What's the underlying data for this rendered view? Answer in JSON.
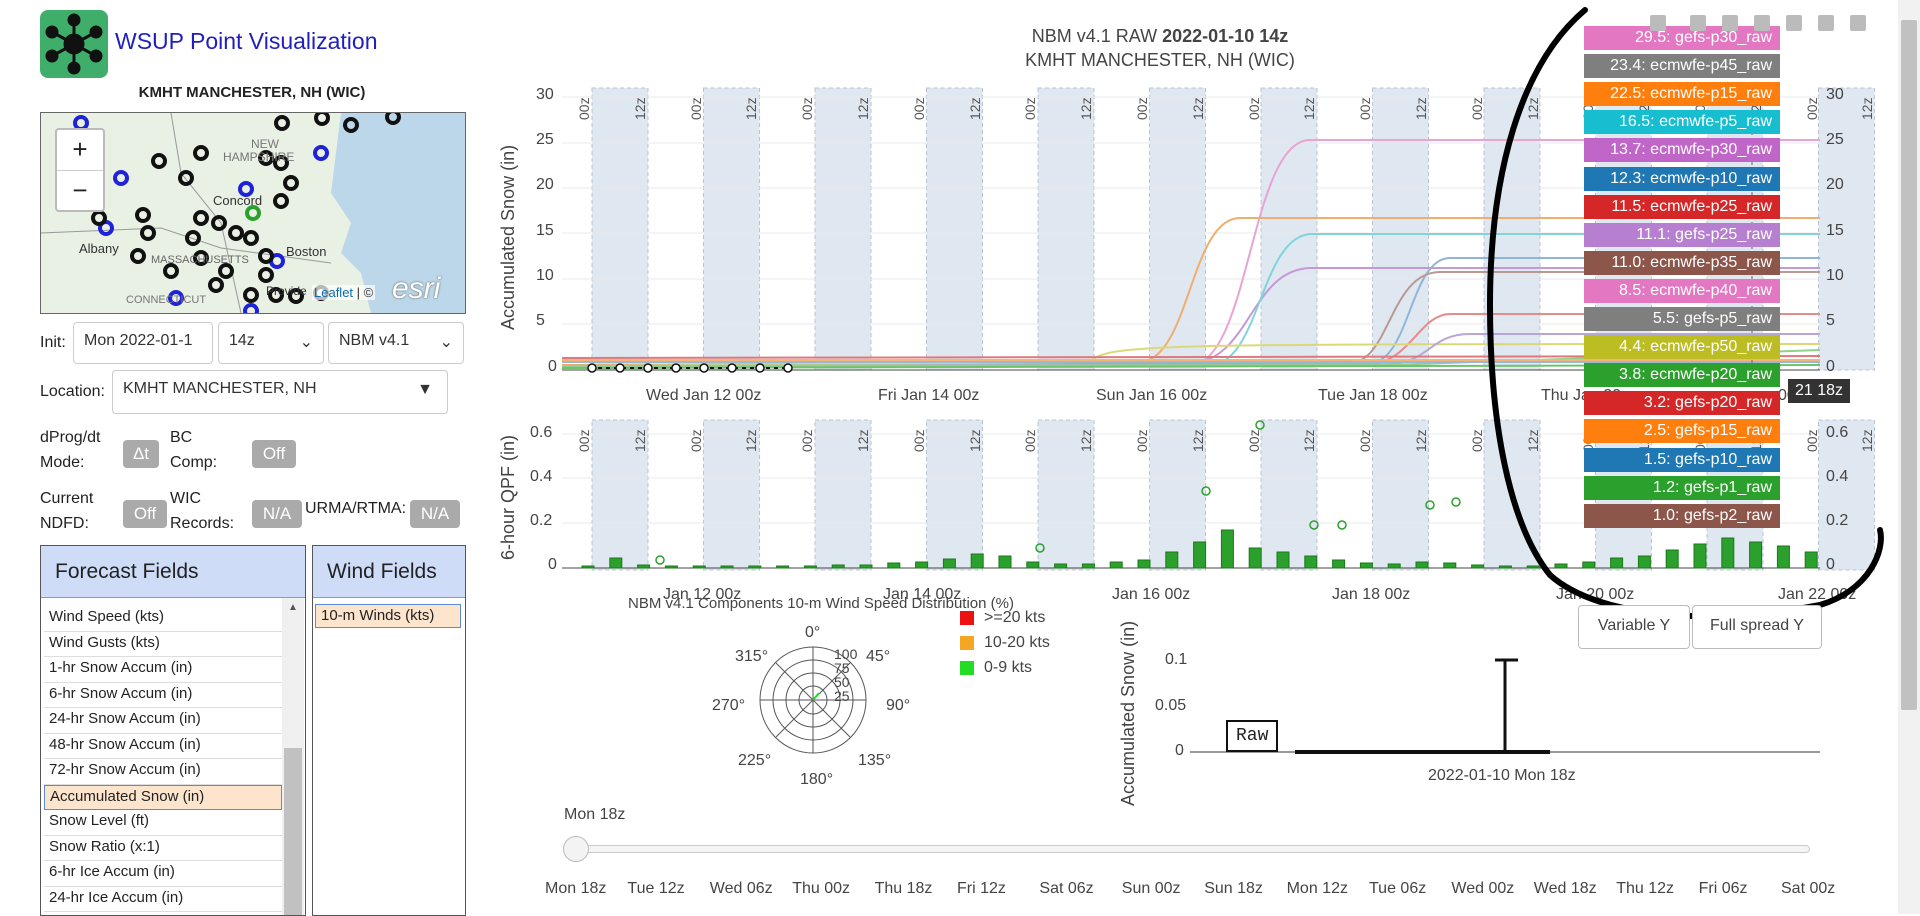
{
  "app": {
    "title": "WSUP Point Visualization"
  },
  "map": {
    "title": "KMHT MANCHESTER, NH (WIC)",
    "zoom_in": "+",
    "zoom_out": "−",
    "attribution_link": "Leaflet",
    "attribution_rest": " | ©",
    "provider": "esri",
    "labels": [
      "NEW",
      "HAMPSHIRE",
      "Concord",
      "Albany",
      "MASSACHUSETTS",
      "Boston",
      "CONNECTICUT",
      "Provide"
    ]
  },
  "controls": {
    "init_label": "Init:",
    "init_date": "Mon 2022-01-1",
    "init_hour": "14z",
    "model": "NBM v4.1",
    "location_label": "Location:",
    "location_value": "KMHT MANCHESTER, NH",
    "dprog_label_1": "dProg/dt",
    "dprog_label_2": "Mode:",
    "dprog_value": "Δt",
    "bc_label_1": "BC",
    "bc_label_2": "Comp:",
    "bc_value": "Off",
    "ndfd_label_1": "Current",
    "ndfd_label_2": "NDFD:",
    "ndfd_value": "Off",
    "wic_label_1": "WIC",
    "wic_label_2": "Records:",
    "wic_value": "N/A",
    "urma_label": "URMA/RTMA:",
    "urma_value": "N/A"
  },
  "forecast_fields": {
    "title": "Forecast Fields",
    "items": [
      "Wind Speed (kts)",
      "Wind Gusts (kts)",
      "1-hr Snow Accum (in)",
      "6-hr Snow Accum (in)",
      "24-hr Snow Accum (in)",
      "48-hr Snow Accum (in)",
      "72-hr Snow Accum (in)",
      "Accumulated Snow (in)",
      "Snow Level (ft)",
      "Snow Ratio (x:1)",
      "6-hr Ice Accum (in)",
      "24-hr Ice Accum (in)"
    ],
    "selected": "Accumulated Snow (in)"
  },
  "wind_fields": {
    "title": "Wind Fields",
    "items": [
      "10-m Winds (kts)"
    ]
  },
  "main_chart": {
    "title_plain": "NBM v4.1 RAW ",
    "title_bold": "2022-01-10 14z",
    "subtitle": "KMHT MANCHESTER, NH (WIC)",
    "ylabel_top": "Accumulated Snow (in)",
    "ylabel_bottom": "6-hour QPF (in)",
    "y_ticks_top": [
      "30",
      "25",
      "20",
      "15",
      "10",
      "5",
      "0"
    ],
    "y_ticks_bottom": [
      "0.6",
      "0.4",
      "0.2",
      "0"
    ],
    "x_ticks_top": [
      "Wed Jan 12 00z",
      "Fri Jan 14 00z",
      "Sun Jan 16 00z",
      "Tue Jan 18 00z",
      "Thu Jan 20",
      "00z"
    ],
    "x_ticks_bottom": [
      "Jan 12 00z",
      "Jan 14 00z",
      "Jan 16 00z",
      "Jan 18 00z",
      "Jan 20 00z",
      "Jan 22 00z"
    ],
    "band_labels": [
      "00z",
      "12z"
    ],
    "hover_label": "21 18z",
    "variable_y": "Variable Y",
    "full_spread_y": "Full spread Y"
  },
  "legend": [
    {
      "text": "29.5: gefs-p30_raw",
      "color": "#e377c2"
    },
    {
      "text": "23.4: ecmwfe-p45_raw",
      "color": "#7f7f7f"
    },
    {
      "text": "22.5: ecmwfe-p15_raw",
      "color": "#ff7f0e"
    },
    {
      "text": "16.5: ecmwfe-p5_raw",
      "color": "#17becf"
    },
    {
      "text": "13.7: ecmwfe-p30_raw",
      "color": "#c066c8"
    },
    {
      "text": "12.3: ecmwfe-p10_raw",
      "color": "#1f77b4"
    },
    {
      "text": "11.5: ecmwfe-p25_raw",
      "color": "#d62728"
    },
    {
      "text": "11.1: gefs-p25_raw",
      "color": "#b77fd0"
    },
    {
      "text": "11.0: ecmwfe-p35_raw",
      "color": "#8c564b"
    },
    {
      "text": "8.5: ecmwfe-p40_raw",
      "color": "#e377c2"
    },
    {
      "text": "5.5: gefs-p5_raw",
      "color": "#7f7f7f"
    },
    {
      "text": "4.4: ecmwfe-p50_raw",
      "color": "#bcbd22"
    },
    {
      "text": "3.8: ecmwfe-p20_raw",
      "color": "#2ca02c"
    },
    {
      "text": "3.2: gefs-p20_raw",
      "color": "#d62728"
    },
    {
      "text": "2.5: gefs-p15_raw",
      "color": "#ff7f0e"
    },
    {
      "text": "1.5: gefs-p10_raw",
      "color": "#1f77b4"
    },
    {
      "text": "1.2: gefs-p1_raw",
      "color": "#2ca02c"
    },
    {
      "text": "1.0: gefs-p2_raw",
      "color": "#8c564b"
    }
  ],
  "wind_rose": {
    "title": "NBM v4.1 Components 10-m Wind Speed Distribution (%)",
    "angles": [
      "0°",
      "45°",
      "90°",
      "135°",
      "180°",
      "225°",
      "270°",
      "315°"
    ],
    "radii": [
      "100",
      "75",
      "50",
      "25"
    ],
    "legend": [
      {
        "text": ">=20 kts",
        "color": "#ee1111"
      },
      {
        "text": "10-20 kts",
        "color": "#f5a623"
      },
      {
        "text": "0-9 kts",
        "color": "#22dd22"
      }
    ]
  },
  "small_chart": {
    "ylabel": "Accumulated Snow (in)",
    "y_ticks": [
      "0.1",
      "0.05",
      "0"
    ],
    "raw_label": "Raw",
    "xlabel": "2022-01-10 Mon 18z"
  },
  "timeline": {
    "current": "Mon 18z",
    "ticks": [
      "Mon 18z",
      "Tue 12z",
      "Wed 06z",
      "Thu 00z",
      "Thu 18z",
      "Fri 12z",
      "Sat 06z",
      "Sun 00z",
      "Sun 18z",
      "Mon 12z",
      "Tue 06z",
      "Wed 00z",
      "Wed 18z",
      "Thu 12z",
      "Fri 06z",
      "Sat 00z"
    ]
  }
}
